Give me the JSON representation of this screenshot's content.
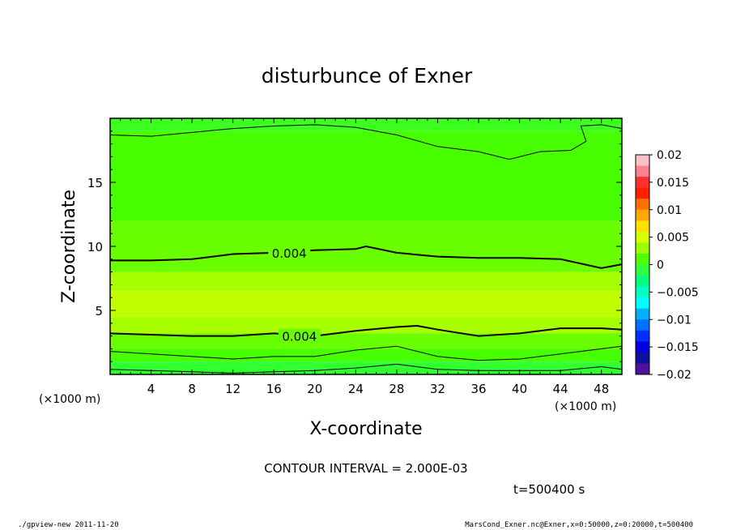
{
  "chart_data": {
    "type": "heatmap",
    "title": "disturbunce of Exner",
    "xlabel": "X-coordinate",
    "ylabel": "Z-coordinate",
    "x_unit_left": "(×1000 m)",
    "x_unit_right": "(×1000 m)",
    "xlim": [
      0,
      50
    ],
    "ylim": [
      0,
      20
    ],
    "x_ticks": [
      "4",
      "8",
      "12",
      "16",
      "20",
      "24",
      "28",
      "32",
      "36",
      "40",
      "44",
      "48"
    ],
    "y_ticks": [
      "5",
      "10",
      "15"
    ],
    "contour_interval_text": "CONTOUR INTERVAL = 2.000E-03",
    "time_text": "t=500400 s",
    "contour_labels": [
      {
        "text": "0.004",
        "x": 17.5,
        "z": 9.5
      },
      {
        "text": "0.004",
        "x": 18.5,
        "z": 3.0
      }
    ],
    "colorbar": {
      "labels": [
        "0.02",
        "0.015",
        "0.01",
        "0.005",
        "0",
        "−0.005",
        "−0.01",
        "−0.015",
        "−0.02"
      ],
      "colors": [
        "#ffc0c8",
        "#ff8090",
        "#ff3030",
        "#ff2000",
        "#ff7000",
        "#ffa800",
        "#ffe000",
        "#d8ff00",
        "#9aff00",
        "#50ff00",
        "#30ff40",
        "#00ff80",
        "#00ffc0",
        "#00ffff",
        "#00b0ff",
        "#0070ff",
        "#0030ff",
        "#0000e0",
        "#1010a0",
        "#5010a0"
      ]
    },
    "field_bands": [
      {
        "z_top": 20,
        "color": "#3cff20"
      },
      {
        "z_top": 19,
        "color": "#48ff00"
      },
      {
        "z_top": 12,
        "color": "#6aff00"
      },
      {
        "z_top": 8,
        "color": "#a8ff00"
      },
      {
        "z_top": 6.5,
        "color": "#c0ff00"
      },
      {
        "z_top": 4.5,
        "color": "#a8ff00"
      },
      {
        "z_top": 3.2,
        "color": "#6aff00"
      },
      {
        "z_top": 2.0,
        "color": "#48ff00"
      },
      {
        "z_top": 1.0,
        "color": "#30ff30"
      }
    ],
    "contours": [
      {
        "weight": "thin",
        "points": [
          [
            0,
            18.7
          ],
          [
            4,
            18.6
          ],
          [
            8,
            18.9
          ],
          [
            12,
            19.2
          ],
          [
            16,
            19.4
          ],
          [
            20,
            19.5
          ],
          [
            24,
            19.3
          ],
          [
            28,
            18.7
          ],
          [
            32,
            17.8
          ],
          [
            36,
            17.4
          ],
          [
            39,
            16.8
          ],
          [
            42,
            17.4
          ],
          [
            45,
            17.5
          ],
          [
            46.5,
            18.2
          ],
          [
            46,
            19.4
          ],
          [
            48,
            19.5
          ],
          [
            50,
            19.2
          ]
        ]
      },
      {
        "weight": "bold",
        "points": [
          [
            0,
            8.9
          ],
          [
            4,
            8.9
          ],
          [
            8,
            9.0
          ],
          [
            12,
            9.4
          ],
          [
            16,
            9.5
          ],
          [
            20,
            9.7
          ],
          [
            24,
            9.8
          ],
          [
            25,
            10.0
          ],
          [
            28,
            9.5
          ],
          [
            32,
            9.2
          ],
          [
            36,
            9.1
          ],
          [
            40,
            9.1
          ],
          [
            44,
            9.0
          ],
          [
            48,
            8.3
          ],
          [
            50,
            8.6
          ]
        ]
      },
      {
        "weight": "bold",
        "points": [
          [
            0,
            3.2
          ],
          [
            4,
            3.1
          ],
          [
            8,
            3.0
          ],
          [
            12,
            3.0
          ],
          [
            16,
            3.2
          ],
          [
            20,
            3.0
          ],
          [
            24,
            3.4
          ],
          [
            28,
            3.7
          ],
          [
            30,
            3.8
          ],
          [
            32,
            3.5
          ],
          [
            36,
            3.0
          ],
          [
            40,
            3.2
          ],
          [
            44,
            3.6
          ],
          [
            48,
            3.6
          ],
          [
            50,
            3.5
          ]
        ]
      },
      {
        "weight": "thin",
        "points": [
          [
            0,
            1.8
          ],
          [
            4,
            1.6
          ],
          [
            8,
            1.4
          ],
          [
            12,
            1.2
          ],
          [
            16,
            1.4
          ],
          [
            20,
            1.4
          ],
          [
            24,
            1.9
          ],
          [
            28,
            2.2
          ],
          [
            32,
            1.4
          ],
          [
            36,
            1.1
          ],
          [
            40,
            1.2
          ],
          [
            44,
            1.6
          ],
          [
            48,
            2.0
          ],
          [
            50,
            2.2
          ]
        ]
      },
      {
        "weight": "thin",
        "points": [
          [
            0,
            0.4
          ],
          [
            4,
            0.3
          ],
          [
            8,
            0.2
          ],
          [
            12,
            0.1
          ],
          [
            16,
            0.2
          ],
          [
            20,
            0.3
          ],
          [
            24,
            0.5
          ],
          [
            28,
            0.8
          ],
          [
            32,
            0.4
          ],
          [
            36,
            0.3
          ],
          [
            40,
            0.3
          ],
          [
            44,
            0.3
          ],
          [
            48,
            0.6
          ],
          [
            50,
            0.4
          ]
        ]
      }
    ]
  },
  "footer": {
    "left": "./gpview-new  2011-11-20",
    "right": "MarsCond_Exner.nc@Exner,x=0:50000,z=0:20000,t=500400"
  }
}
